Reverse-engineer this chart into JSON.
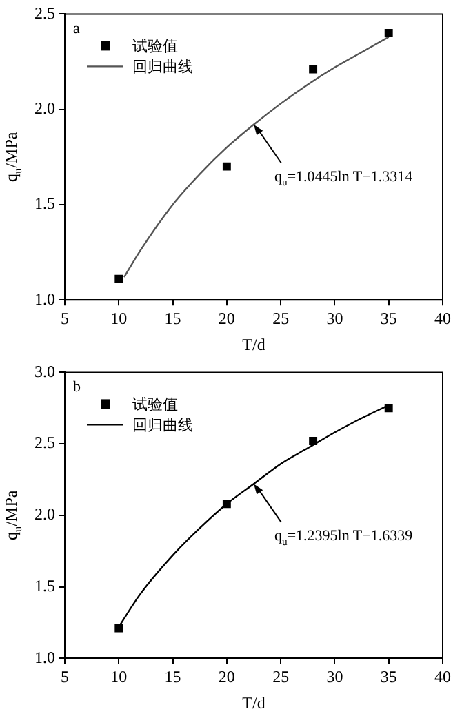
{
  "chart_data": [
    {
      "type": "scatter",
      "xlabel": "T/d",
      "ylabel": "q$_{u}$/MPa",
      "legend": "top left",
      "grid": false,
      "xlim": [
        5,
        40
      ],
      "xticks": [
        5,
        10,
        15,
        20,
        25,
        30,
        35,
        40
      ],
      "ylim": [
        1,
        2.5
      ],
      "yticks": [
        {
          "value": 1,
          "label": "1.0"
        },
        {
          "value": 1.5,
          "label": "1.5"
        },
        {
          "value": 2,
          "label": "2.0"
        },
        {
          "value": 2.5,
          "label": "2.5"
        }
      ],
      "annotations": [
        "a",
        {
          "text": "q$_{u}$=1.0445ln T−1.3314",
          "x": 22.5,
          "y": 1.92
        }
      ],
      "series": [
        {
          "name": "试验值",
          "type": "scatter",
          "marker": "square",
          "color": "#000000",
          "x": [
            10,
            20,
            28,
            35
          ],
          "values": [
            1.11,
            1.7,
            2.21,
            2.4
          ]
        },
        {
          "name": "回归曲线",
          "type": "line",
          "marker": "none",
          "line_style": "solid",
          "color": "#555555",
          "x": [
            10.5,
            12,
            15,
            17.5,
            20,
            22.5,
            25,
            27.5,
            30,
            32.5,
            35
          ],
          "values": [
            1.12,
            1.26,
            1.5,
            1.66,
            1.8,
            1.92,
            2.03,
            2.13,
            2.22,
            2.3,
            2.38
          ]
        }
      ]
    },
    {
      "type": "scatter",
      "xlabel": "T/d",
      "ylabel": "q$_{u}$/MPa",
      "legend": "top left",
      "grid": false,
      "xlim": [
        5,
        40
      ],
      "xticks": [
        5,
        10,
        15,
        20,
        25,
        30,
        35,
        40
      ],
      "ylim": [
        1,
        3
      ],
      "yticks": [
        {
          "value": 1,
          "label": "1.0"
        },
        {
          "value": 1.5,
          "label": "1.5"
        },
        {
          "value": 2,
          "label": "2.0"
        },
        {
          "value": 2.5,
          "label": "2.5"
        },
        {
          "value": 3,
          "label": "3.0"
        }
      ],
      "annotations": [
        "b",
        {
          "text": "q$_{u}$=1.2395ln T−1.6339",
          "x": 22.5,
          "y": 2.22
        }
      ],
      "series": [
        {
          "name": "试验值",
          "type": "scatter",
          "marker": "square",
          "color": "#000000",
          "x": [
            10,
            20,
            28,
            35
          ],
          "values": [
            1.21,
            2.08,
            2.52,
            2.75
          ]
        },
        {
          "name": "回归曲线",
          "type": "line",
          "marker": "none",
          "line_style": "solid",
          "color": "#000000",
          "x": [
            10,
            12,
            15,
            17.5,
            20,
            22.5,
            25,
            27.5,
            30,
            32.5,
            35
          ],
          "values": [
            1.22,
            1.45,
            1.72,
            1.91,
            2.08,
            2.22,
            2.36,
            2.47,
            2.58,
            2.68,
            2.77
          ]
        }
      ]
    }
  ]
}
